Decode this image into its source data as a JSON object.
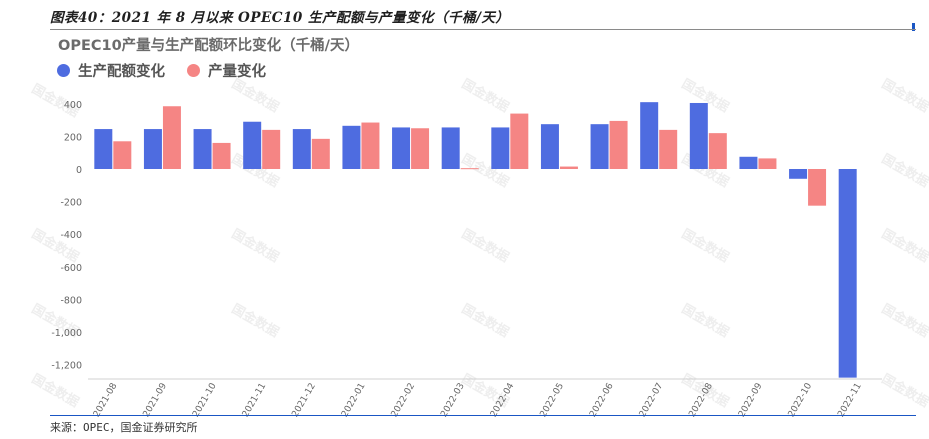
{
  "figure_title": "图表40：2021 年 8 月以来 OPEC10 生产配额与产量变化（千桶/天）",
  "source": "来源：OPEC，国金证券研究所",
  "watermark": "国金数据",
  "colors": {
    "quota": "#4e6ce0",
    "production": "#f58584",
    "rule": "#1a56c4"
  },
  "chart_data": {
    "type": "bar",
    "title": "OPEC10产量与生产配额环比变化（千桶/天）",
    "xlabel": "",
    "ylabel": "",
    "categories": [
      "2021-08",
      "2021-09",
      "2021-10",
      "2021-11",
      "2021-12",
      "2022-01",
      "2022-02",
      "2022-03",
      "2022-04",
      "2022-05",
      "2022-06",
      "2022-07",
      "2022-08",
      "2022-09",
      "2022-10",
      "2022-11"
    ],
    "series": [
      {
        "name": "生产配额变化",
        "values": [
          245,
          245,
          245,
          290,
          245,
          265,
          255,
          255,
          255,
          275,
          275,
          410,
          405,
          75,
          -60,
          -1280
        ]
      },
      {
        "name": "产量变化",
        "values": [
          170,
          385,
          160,
          240,
          185,
          285,
          250,
          5,
          340,
          15,
          295,
          240,
          220,
          65,
          -225,
          null
        ]
      }
    ],
    "yticks": [
      "400",
      "200",
      "0",
      "-200",
      "-400",
      "-600",
      "-800",
      "-1,000",
      "-1,200"
    ],
    "ylim": [
      -1300,
      450
    ],
    "legend_position": "top-left",
    "grid": false
  }
}
